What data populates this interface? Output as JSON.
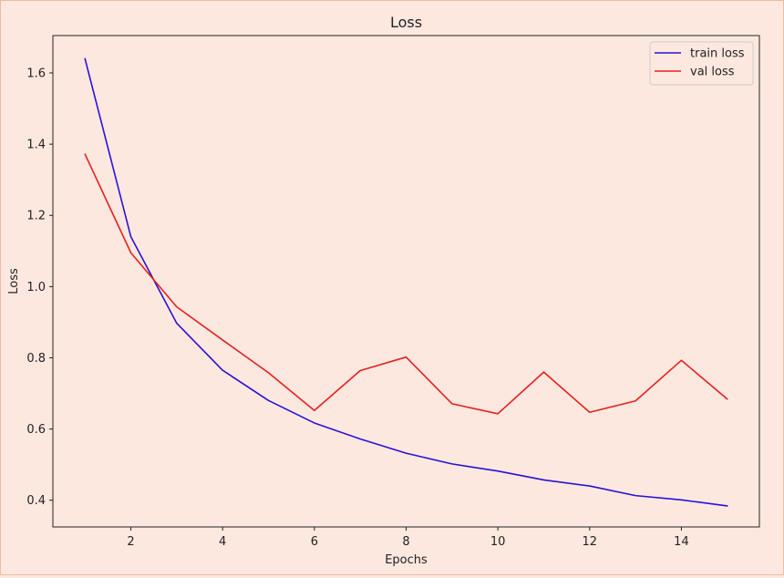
{
  "chart_data": {
    "type": "line",
    "title": "Loss",
    "xlabel": "Epochs",
    "ylabel": "Loss",
    "xlim": [
      0.3,
      15.7
    ],
    "ylim": [
      0.325,
      1.705
    ],
    "xticks": [
      2,
      4,
      6,
      8,
      10,
      12,
      14
    ],
    "yticks": [
      0.4,
      0.6,
      0.8,
      1.0,
      1.2,
      1.4,
      1.6
    ],
    "grid": false,
    "legend_position": "top-right",
    "x": [
      1,
      2,
      3,
      4,
      5,
      6,
      7,
      8,
      9,
      10,
      11,
      12,
      13,
      14,
      15
    ],
    "series": [
      {
        "name": "train loss",
        "color": "#2a10d8",
        "values": [
          1.64,
          1.14,
          0.897,
          0.765,
          0.68,
          0.617,
          0.572,
          0.532,
          0.502,
          0.482,
          0.457,
          0.44,
          0.413,
          0.401,
          0.384
        ]
      },
      {
        "name": "val loss",
        "color": "#e8201c",
        "values": [
          1.372,
          1.095,
          0.943,
          0.85,
          0.758,
          0.652,
          0.764,
          0.802,
          0.671,
          0.643,
          0.76,
          0.647,
          0.679,
          0.793,
          0.684
        ]
      }
    ]
  }
}
